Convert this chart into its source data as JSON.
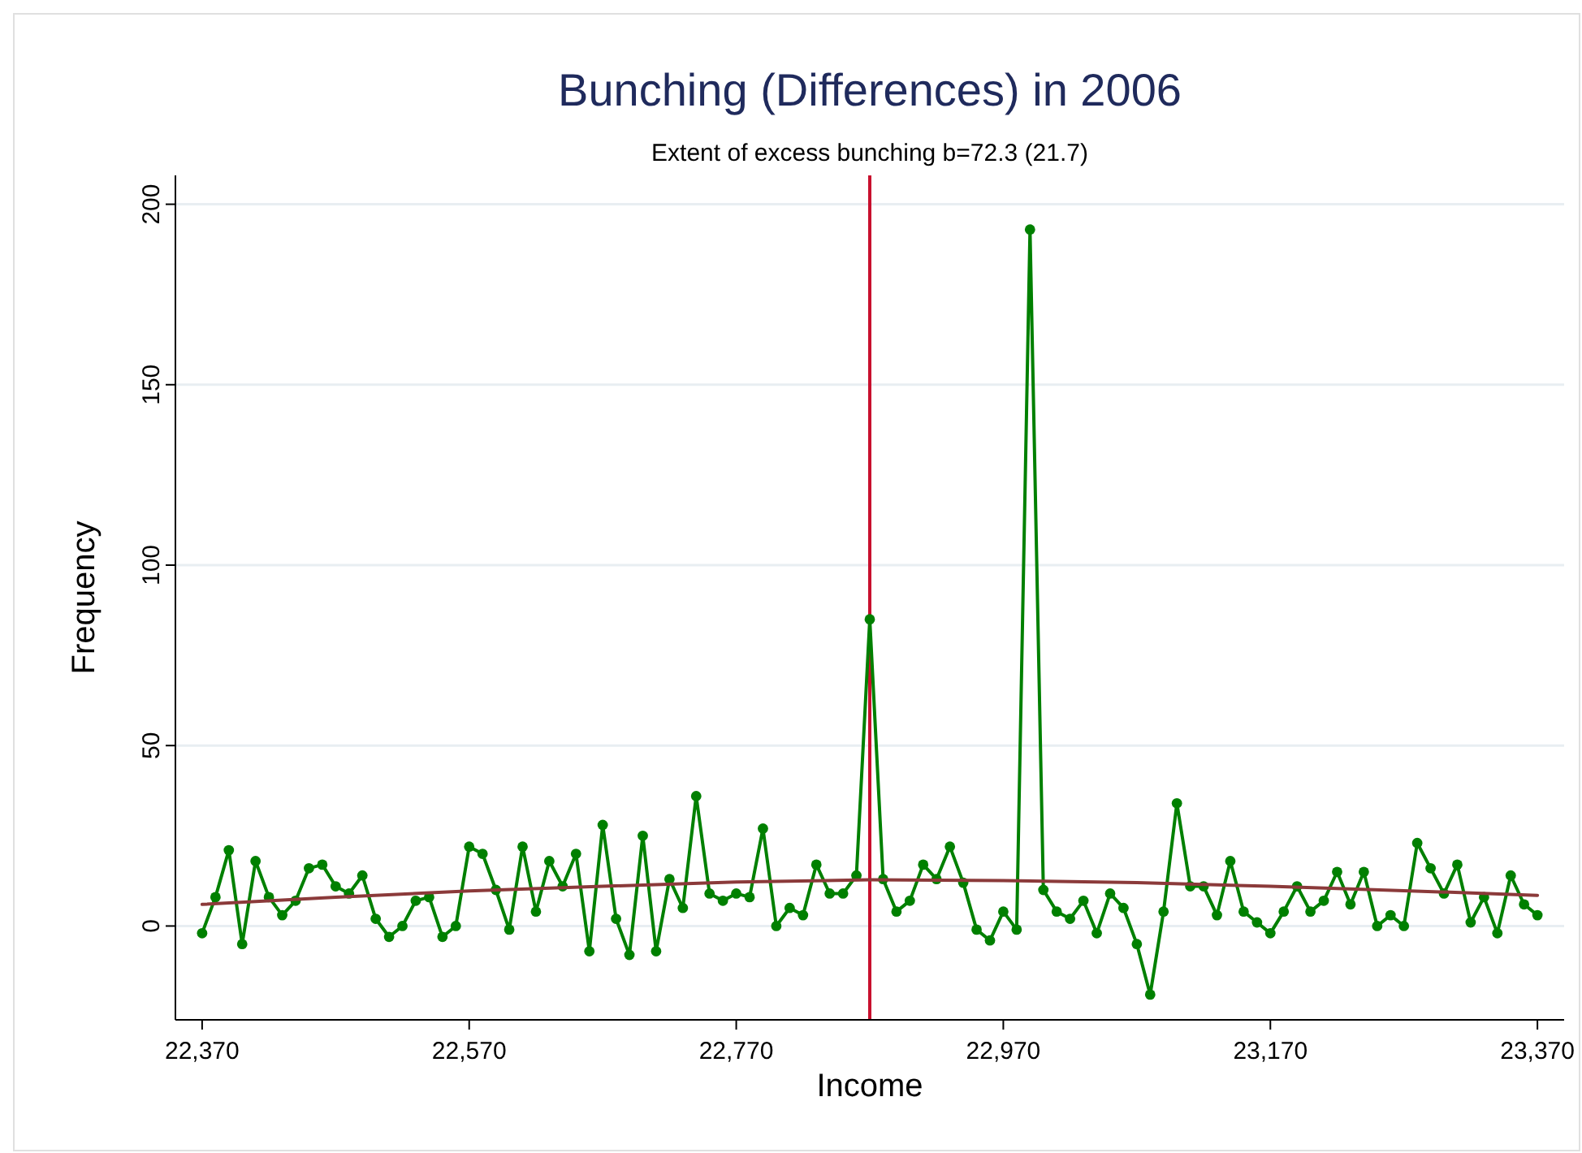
{
  "chart_data": {
    "type": "line",
    "title": "Bunching (Differences) in 2006",
    "subtitle": "Extent of excess bunching b=72.3 (21.7)",
    "xlabel": "Income",
    "ylabel": "Frequency",
    "x": [
      22370,
      22380,
      22390,
      22400,
      22410,
      22420,
      22430,
      22440,
      22450,
      22460,
      22470,
      22480,
      22490,
      22500,
      22510,
      22520,
      22530,
      22540,
      22550,
      22560,
      22570,
      22580,
      22590,
      22600,
      22610,
      22620,
      22630,
      22640,
      22650,
      22660,
      22670,
      22680,
      22690,
      22700,
      22710,
      22720,
      22730,
      22740,
      22750,
      22760,
      22770,
      22780,
      22790,
      22800,
      22810,
      22820,
      22830,
      22840,
      22850,
      22860,
      22870,
      22880,
      22890,
      22900,
      22910,
      22920,
      22930,
      22940,
      22950,
      22960,
      22970,
      22980,
      22990,
      23000,
      23010,
      23020,
      23030,
      23040,
      23050,
      23060,
      23070,
      23080,
      23090,
      23100,
      23110,
      23120,
      23130,
      23140,
      23150,
      23160,
      23170,
      23180,
      23190,
      23200,
      23210,
      23220,
      23230,
      23240,
      23250,
      23260,
      23270,
      23280,
      23290,
      23300,
      23310,
      23320,
      23330,
      23340,
      23350,
      23360,
      23370
    ],
    "series": [
      {
        "color": "#008000",
        "marker": "circle",
        "values": [
          -2,
          8,
          21,
          -5,
          18,
          8,
          3,
          7,
          16,
          17,
          11,
          9,
          14,
          2,
          -3,
          0,
          7,
          8,
          -3,
          0,
          22,
          20,
          10,
          -1,
          22,
          4,
          18,
          11,
          20,
          -7,
          28,
          2,
          -8,
          25,
          -7,
          13,
          5,
          36,
          9,
          7,
          9,
          8,
          27,
          0,
          5,
          3,
          17,
          9,
          9,
          14,
          85,
          13,
          4,
          7,
          17,
          13,
          22,
          12,
          -1,
          -4,
          4,
          -1,
          193,
          10,
          4,
          2,
          7,
          -2,
          9,
          5,
          -5,
          -19,
          4,
          34,
          11,
          11,
          3,
          18,
          4,
          1,
          -2,
          4,
          11,
          4,
          7,
          15,
          6,
          15,
          0,
          3,
          0,
          23,
          16,
          9,
          17,
          1,
          8,
          -2,
          14,
          6,
          3
        ]
      },
      {
        "color": "#8b3a3a",
        "marker": "none",
        "x": [
          22370,
          22470,
          22570,
          22670,
          22770,
          22870,
          22970,
          23070,
          23170,
          23270,
          23370
        ],
        "values": [
          6,
          8,
          9.7,
          11,
          12.2,
          12.8,
          12.6,
          12,
          11,
          9.8,
          8.5
        ]
      }
    ],
    "xlim": [
      22350,
      23390
    ],
    "xticks": [
      {
        "value": 22370,
        "label": "22,370"
      },
      {
        "value": 22570,
        "label": "22,570"
      },
      {
        "value": 22770,
        "label": "22,770"
      },
      {
        "value": 22970,
        "label": "22,970"
      },
      {
        "value": 23170,
        "label": "23,170"
      },
      {
        "value": 23370,
        "label": "23,370"
      }
    ],
    "ylim": [
      -26,
      208
    ],
    "yticks": [
      0,
      50,
      100,
      150,
      200
    ],
    "grid": "y",
    "ref_lines": [
      {
        "axis": "x",
        "value": 22870,
        "color": "#c8102e"
      }
    ]
  }
}
